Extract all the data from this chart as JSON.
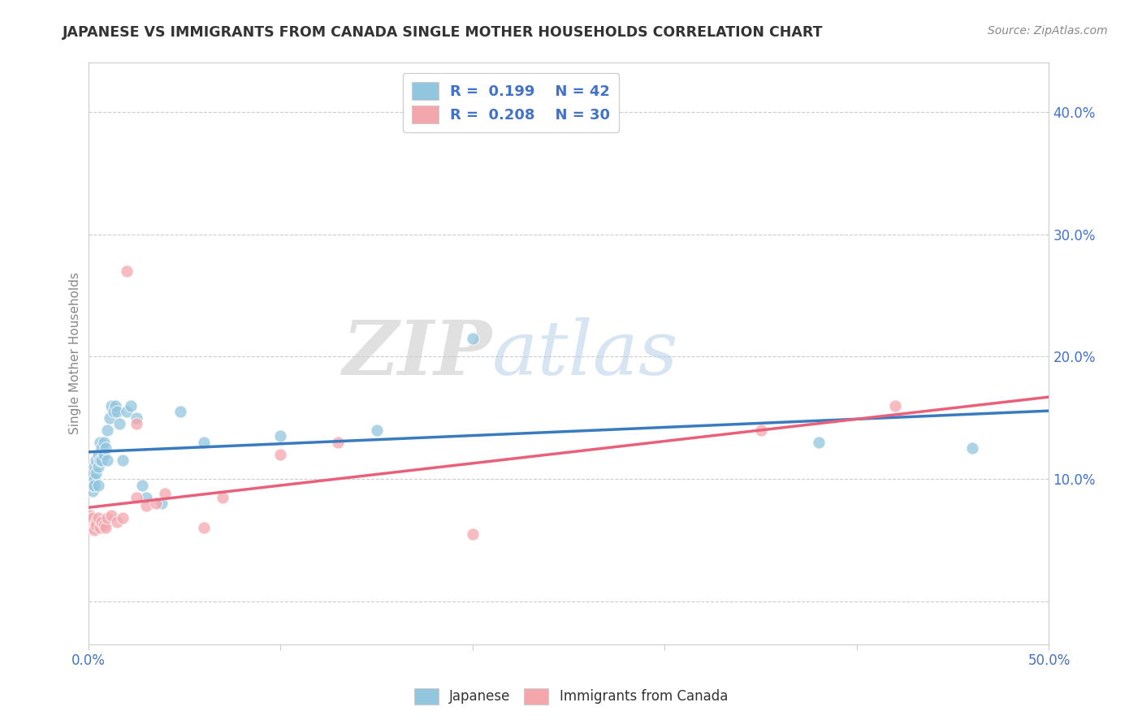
{
  "title": "JAPANESE VS IMMIGRANTS FROM CANADA SINGLE MOTHER HOUSEHOLDS CORRELATION CHART",
  "source": "Source: ZipAtlas.com",
  "ylabel": "Single Mother Households",
  "xlim": [
    0.0,
    0.5
  ],
  "ylim": [
    -0.035,
    0.44
  ],
  "xticks": [
    0.0,
    0.1,
    0.2,
    0.3,
    0.4,
    0.5
  ],
  "yticks": [
    0.0,
    0.1,
    0.2,
    0.3,
    0.4
  ],
  "ytick_labels_right": [
    "",
    "10.0%",
    "20.0%",
    "30.0%",
    "40.0%"
  ],
  "xtick_labels": [
    "0.0%",
    "",
    "",
    "",
    "",
    "50.0%"
  ],
  "blue_color": "#92c5de",
  "pink_color": "#f4a6ad",
  "blue_line_color": "#3a7abf",
  "pink_line_color": "#e8607a",
  "watermark_zip": "ZIP",
  "watermark_atlas": "atlas",
  "japanese_x": [
    0.001,
    0.001,
    0.002,
    0.002,
    0.002,
    0.003,
    0.003,
    0.003,
    0.004,
    0.004,
    0.005,
    0.005,
    0.005,
    0.006,
    0.006,
    0.007,
    0.007,
    0.008,
    0.008,
    0.009,
    0.01,
    0.01,
    0.011,
    0.012,
    0.013,
    0.014,
    0.015,
    0.016,
    0.018,
    0.02,
    0.022,
    0.025,
    0.028,
    0.03,
    0.038,
    0.048,
    0.06,
    0.1,
    0.15,
    0.2,
    0.38,
    0.46
  ],
  "japanese_y": [
    0.095,
    0.1,
    0.09,
    0.105,
    0.095,
    0.11,
    0.1,
    0.095,
    0.115,
    0.105,
    0.12,
    0.11,
    0.095,
    0.13,
    0.115,
    0.125,
    0.115,
    0.13,
    0.12,
    0.125,
    0.14,
    0.115,
    0.15,
    0.16,
    0.155,
    0.16,
    0.155,
    0.145,
    0.115,
    0.155,
    0.16,
    0.15,
    0.095,
    0.085,
    0.08,
    0.155,
    0.13,
    0.135,
    0.14,
    0.215,
    0.13,
    0.125
  ],
  "canada_x": [
    0.001,
    0.001,
    0.002,
    0.002,
    0.003,
    0.003,
    0.004,
    0.004,
    0.005,
    0.006,
    0.007,
    0.008,
    0.009,
    0.01,
    0.012,
    0.015,
    0.018,
    0.02,
    0.025,
    0.025,
    0.03,
    0.035,
    0.04,
    0.06,
    0.07,
    0.1,
    0.13,
    0.2,
    0.35,
    0.42
  ],
  "canada_y": [
    0.065,
    0.07,
    0.062,
    0.068,
    0.06,
    0.058,
    0.065,
    0.062,
    0.068,
    0.06,
    0.065,
    0.062,
    0.06,
    0.068,
    0.07,
    0.065,
    0.068,
    0.27,
    0.085,
    0.145,
    0.078,
    0.08,
    0.088,
    0.06,
    0.085,
    0.12,
    0.13,
    0.055,
    0.14,
    0.16
  ]
}
